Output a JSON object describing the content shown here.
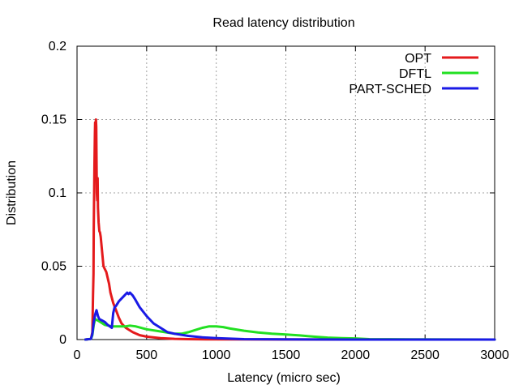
{
  "chart_data": {
    "type": "line",
    "title": "Read latency distribution",
    "xlabel": "Latency (micro sec)",
    "ylabel": "Distribution",
    "xlim": [
      0,
      3000
    ],
    "ylim": [
      0,
      0.2
    ],
    "xticks": [
      0,
      500,
      1000,
      1500,
      2000,
      2500,
      3000
    ],
    "xtick_labels": [
      "0",
      "500",
      "1000",
      "1500",
      "2000",
      "2500",
      "3000"
    ],
    "yticks": [
      0,
      0.05,
      0.1,
      0.15,
      0.2
    ],
    "ytick_labels": [
      "0",
      "0.05",
      "0.1",
      "0.15",
      "0.2"
    ],
    "grid": true,
    "legend_position": "top-right",
    "series": [
      {
        "name": "OPT",
        "color": "#e41a1c",
        "x": [
          60,
          100,
          110,
          115,
          118,
          120,
          125,
          128,
          130,
          133,
          136,
          138,
          140,
          142,
          145,
          148,
          150,
          155,
          160,
          165,
          170,
          180,
          190,
          200,
          210,
          220,
          230,
          240,
          260,
          280,
          300,
          320,
          350,
          400,
          450,
          500,
          600,
          700,
          800,
          1000,
          1500,
          2000,
          3000
        ],
        "y": [
          0,
          0.0005,
          0.005,
          0.03,
          0.045,
          0.075,
          0.12,
          0.14,
          0.148,
          0.135,
          0.15,
          0.145,
          0.125,
          0.1,
          0.095,
          0.11,
          0.09,
          0.08,
          0.074,
          0.073,
          0.07,
          0.06,
          0.05,
          0.048,
          0.046,
          0.042,
          0.038,
          0.032,
          0.025,
          0.02,
          0.015,
          0.011,
          0.008,
          0.005,
          0.003,
          0.002,
          0.001,
          0.0005,
          0.0003,
          0.0001,
          5e-05,
          0,
          0
        ]
      },
      {
        "name": "DFTL",
        "color": "#22e022",
        "x": [
          60,
          100,
          110,
          120,
          130,
          150,
          200,
          250,
          300,
          350,
          380,
          420,
          500,
          600,
          700,
          750,
          800,
          850,
          900,
          950,
          1000,
          1050,
          1100,
          1200,
          1300,
          1400,
          1500,
          1600,
          1700,
          1800,
          1900,
          2000,
          2100,
          2500,
          3000
        ],
        "y": [
          0,
          0.0005,
          0.003,
          0.01,
          0.014,
          0.013,
          0.01,
          0.009,
          0.009,
          0.009,
          0.0095,
          0.009,
          0.007,
          0.0055,
          0.004,
          0.004,
          0.005,
          0.0065,
          0.008,
          0.009,
          0.009,
          0.0085,
          0.0075,
          0.006,
          0.0048,
          0.004,
          0.0035,
          0.0028,
          0.002,
          0.0013,
          0.001,
          0.0008,
          0.0003,
          0.0001,
          0
        ]
      },
      {
        "name": "PART-SCHED",
        "color": "#1a1ae6",
        "x": [
          60,
          100,
          110,
          120,
          130,
          140,
          150,
          160,
          180,
          200,
          220,
          250,
          260,
          270,
          280,
          300,
          320,
          340,
          350,
          360,
          370,
          380,
          400,
          420,
          450,
          500,
          550,
          600,
          650,
          700,
          800,
          900,
          1000,
          1100,
          1200,
          1500,
          2000,
          3000
        ],
        "y": [
          0,
          0.0005,
          0.004,
          0.012,
          0.017,
          0.02,
          0.016,
          0.014,
          0.013,
          0.012,
          0.01,
          0.008,
          0.018,
          0.022,
          0.023,
          0.026,
          0.028,
          0.03,
          0.031,
          0.032,
          0.031,
          0.032,
          0.03,
          0.027,
          0.022,
          0.016,
          0.011,
          0.008,
          0.005,
          0.004,
          0.0025,
          0.0015,
          0.001,
          0.0006,
          0.0003,
          0.0001,
          0,
          0
        ]
      }
    ]
  }
}
